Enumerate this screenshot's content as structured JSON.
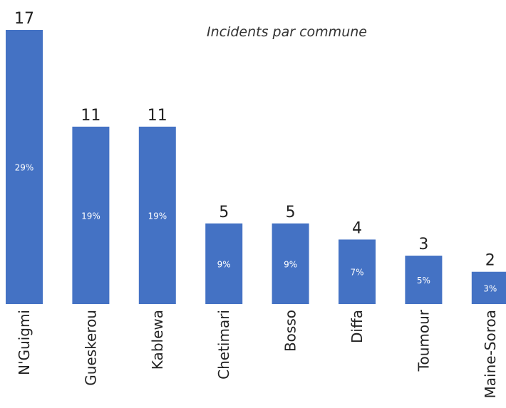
{
  "chart_data": {
    "type": "bar",
    "title": "Incidents par commune",
    "categories": [
      "N'Guigmi",
      "Gueskerou",
      "Kablewa",
      "Chetimari",
      "Bosso",
      "Diffa",
      "Toumour",
      "Maine-Soroa"
    ],
    "values": [
      17,
      11,
      11,
      5,
      5,
      4,
      3,
      2
    ],
    "percent_labels": [
      "29%",
      "19%",
      "19%",
      "9%",
      "9%",
      "7%",
      "5%",
      "3%"
    ],
    "xlabel": "",
    "ylabel": "",
    "ylim": [
      0,
      17
    ],
    "grid": false,
    "legend": "none",
    "bar_color": "#4472C4"
  }
}
